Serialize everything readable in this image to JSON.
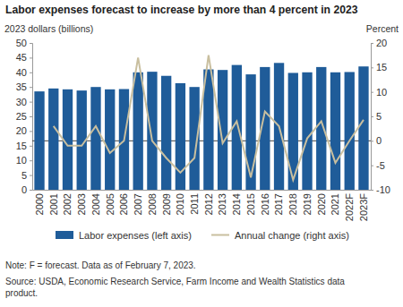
{
  "chart_data": {
    "type": "bar",
    "title": "Labor expenses forecast to increase by more than 4 percent in 2023",
    "y_label": "2023 dollars (billions)",
    "y2_label": "Percent",
    "categories": [
      "2000",
      "2001",
      "2002",
      "2003",
      "2004",
      "2005",
      "2006",
      "2007",
      "2008",
      "2009",
      "2010",
      "2011",
      "2012",
      "2013",
      "2014",
      "2015",
      "2016",
      "2017",
      "2018",
      "2019",
      "2020",
      "2021",
      "2022F",
      "2023F"
    ],
    "series": [
      {
        "name": "Labor expenses (left axis)",
        "type": "bar",
        "color": "#1f5c99",
        "values": [
          33.5,
          34.5,
          34.2,
          33.8,
          35.0,
          34.2,
          34.3,
          40.0,
          40.2,
          38.8,
          36.3,
          35.0,
          41.0,
          40.8,
          42.5,
          39.3,
          41.8,
          43.2,
          39.8,
          40.0,
          41.8,
          40.0,
          40.1,
          42.0
        ]
      },
      {
        "name": "Annual change (right axis)",
        "type": "line",
        "axis": "y2",
        "color": "#c9bf9f",
        "values": [
          null,
          3.0,
          -1.0,
          -1.0,
          3.0,
          -2.5,
          0.0,
          17.0,
          0.0,
          -3.5,
          -6.5,
          -3.5,
          17.5,
          -0.5,
          4.0,
          -7.5,
          6.0,
          3.0,
          -8.0,
          0.5,
          4.0,
          -4.5,
          0.0,
          4.3
        ]
      }
    ],
    "ylim": [
      0,
      50
    ],
    "yticks": [
      0,
      5,
      10,
      15,
      20,
      25,
      30,
      35,
      40,
      45,
      50
    ],
    "y2lim": [
      -10,
      20
    ],
    "y2ticks": [
      -10,
      -5,
      0,
      5,
      10,
      15,
      20
    ],
    "grid": false,
    "legend": "bottom",
    "notes": [
      "Note: F = forecast. Data as of February 7, 2023.",
      "Source: USDA, Economic Research Service, Farm Income and Wealth Statistics data",
      "product."
    ]
  }
}
